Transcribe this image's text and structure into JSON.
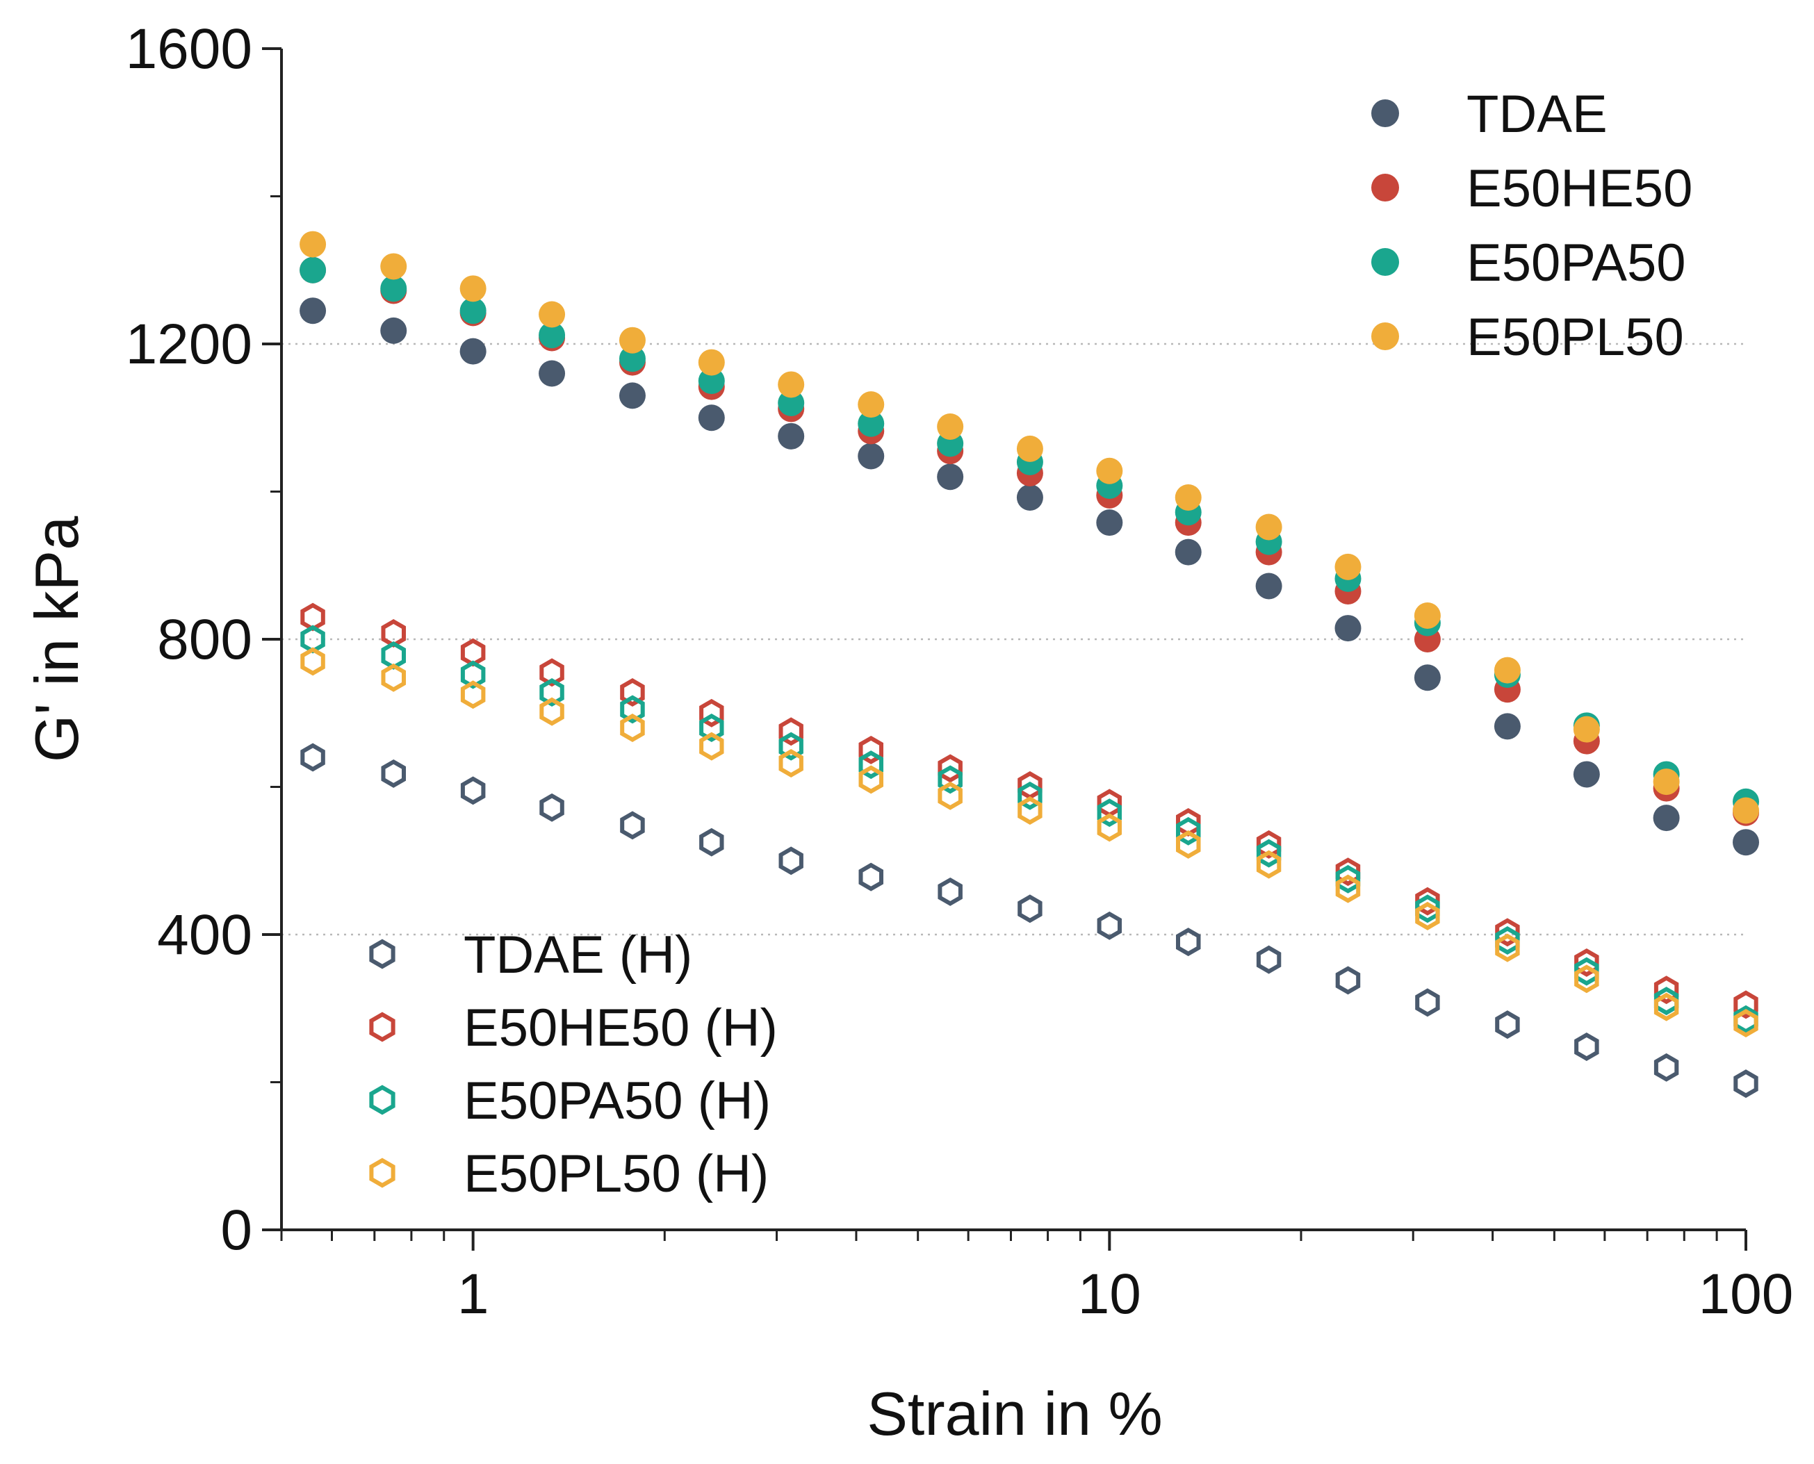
{
  "chart_data": {
    "type": "scatter",
    "title": "",
    "xlabel": "Strain in %",
    "ylabel": "G' in kPa",
    "xscale": "log",
    "xlim": [
      0.5,
      100
    ],
    "ylim": [
      0,
      1600
    ],
    "x_ticks": [
      1,
      10,
      100
    ],
    "x_tick_labels": [
      "1",
      "10",
      "100"
    ],
    "y_ticks": [
      0,
      400,
      800,
      1200,
      1600
    ],
    "y_tick_labels": [
      "0",
      "400",
      "800",
      "1200",
      "1600"
    ],
    "gridlines_y": [
      400,
      800,
      1200
    ],
    "legend_filled_position": "top-right",
    "legend_hollow_position": "bottom-left",
    "x": [
      0.56,
      0.75,
      1.0,
      1.33,
      1.78,
      2.37,
      3.16,
      4.22,
      5.62,
      7.5,
      10.0,
      13.3,
      17.8,
      23.7,
      31.6,
      42.2,
      56.2,
      75.0,
      100.0
    ],
    "series": [
      {
        "name": "TDAE",
        "marker": "filled",
        "color": "#4a5a6e",
        "values": [
          1245,
          1218,
          1190,
          1160,
          1130,
          1100,
          1075,
          1048,
          1020,
          992,
          958,
          918,
          872,
          815,
          748,
          682,
          617,
          558,
          525
        ]
      },
      {
        "name": "E50HE50",
        "marker": "filled",
        "color": "#c8463a",
        "values": [
          1300,
          1272,
          1242,
          1208,
          1175,
          1142,
          1112,
          1082,
          1055,
          1025,
          995,
          958,
          918,
          865,
          800,
          732,
          662,
          598,
          565
        ]
      },
      {
        "name": "E50PA50",
        "marker": "filled",
        "color": "#1aa68e",
        "values": [
          1300,
          1275,
          1245,
          1212,
          1180,
          1150,
          1120,
          1092,
          1065,
          1040,
          1008,
          972,
          932,
          882,
          822,
          752,
          683,
          617,
          580
        ]
      },
      {
        "name": "E50PL50",
        "marker": "filled",
        "color": "#f0ad3a",
        "values": [
          1335,
          1305,
          1275,
          1240,
          1205,
          1175,
          1145,
          1118,
          1088,
          1058,
          1028,
          992,
          952,
          898,
          832,
          758,
          678,
          607,
          568
        ]
      },
      {
        "name": "TDAE (H)",
        "marker": "hexagon",
        "color": "#4a5a6e",
        "values": [
          640,
          618,
          595,
          572,
          548,
          525,
          500,
          478,
          458,
          435,
          412,
          390,
          366,
          338,
          308,
          278,
          248,
          220,
          198
        ]
      },
      {
        "name": "E50HE50 (H)",
        "marker": "hexagon",
        "color": "#c8463a",
        "values": [
          830,
          808,
          782,
          755,
          728,
          700,
          675,
          650,
          625,
          602,
          578,
          552,
          522,
          485,
          445,
          403,
          362,
          325,
          305
        ]
      },
      {
        "name": "E50PA50 (H)",
        "marker": "hexagon",
        "color": "#1aa68e",
        "values": [
          800,
          778,
          752,
          728,
          705,
          680,
          655,
          630,
          610,
          588,
          565,
          540,
          510,
          475,
          435,
          392,
          350,
          310,
          285
        ]
      },
      {
        "name": "E50PL50 (H)",
        "marker": "hexagon",
        "color": "#f0ad3a",
        "values": [
          770,
          748,
          725,
          702,
          680,
          655,
          632,
          610,
          588,
          568,
          545,
          522,
          495,
          462,
          425,
          382,
          340,
          302,
          280
        ]
      }
    ]
  }
}
